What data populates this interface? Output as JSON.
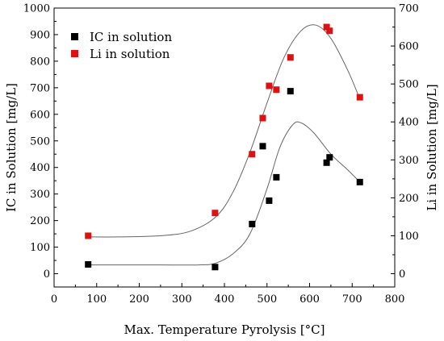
{
  "chart_data": {
    "type": "scatter",
    "xlabel": "Max. Temperature Pyrolysis [°C]",
    "ylabel": "IC in Solution [mg/L]",
    "y2label": "Li in Solution [mg/L]",
    "xlim": [
      0,
      800
    ],
    "ylim": [
      -50,
      1000
    ],
    "y2lim": [
      -35,
      700
    ],
    "x_ticks": [
      0,
      100,
      200,
      300,
      400,
      500,
      600,
      700,
      800
    ],
    "y_ticks": [
      0,
      100,
      200,
      300,
      400,
      500,
      600,
      700,
      800,
      900,
      1000
    ],
    "y2_ticks": [
      0,
      100,
      200,
      300,
      400,
      500,
      600,
      700
    ],
    "grid": false,
    "legend_position": "top-left",
    "series": [
      {
        "name": "IC in solution",
        "axis": "left",
        "color": "#000000",
        "marker": "square",
        "x": [
          80,
          378,
          465,
          490,
          505,
          522,
          555,
          640,
          647,
          718
        ],
        "y": [
          35,
          25,
          187,
          480,
          275,
          363,
          687,
          418,
          438,
          345
        ],
        "fit": {
          "x": [
            80,
            150,
            250,
            340,
            380,
            420,
            460,
            500,
            530,
            560,
            580,
            610,
            650,
            690,
            718
          ],
          "y": [
            33,
            33,
            33,
            33,
            40,
            75,
            150,
            320,
            475,
            560,
            568,
            530,
            450,
            390,
            345
          ]
        }
      },
      {
        "name": "Li in solution",
        "axis": "right",
        "color": "#dd1111",
        "marker": "square",
        "x": [
          80,
          378,
          465,
          490,
          505,
          522,
          555,
          640,
          647,
          718
        ],
        "y": [
          100,
          160,
          315,
          410,
          495,
          485,
          570,
          650,
          640,
          465
        ],
        "fit": {
          "x": [
            80,
            150,
            250,
            320,
            380,
            420,
            460,
            500,
            540,
            580,
            615,
            650,
            690,
            718
          ],
          "y": [
            97,
            97,
            100,
            112,
            150,
            215,
            320,
            450,
            570,
            640,
            655,
            620,
            535,
            460
          ]
        }
      }
    ]
  }
}
